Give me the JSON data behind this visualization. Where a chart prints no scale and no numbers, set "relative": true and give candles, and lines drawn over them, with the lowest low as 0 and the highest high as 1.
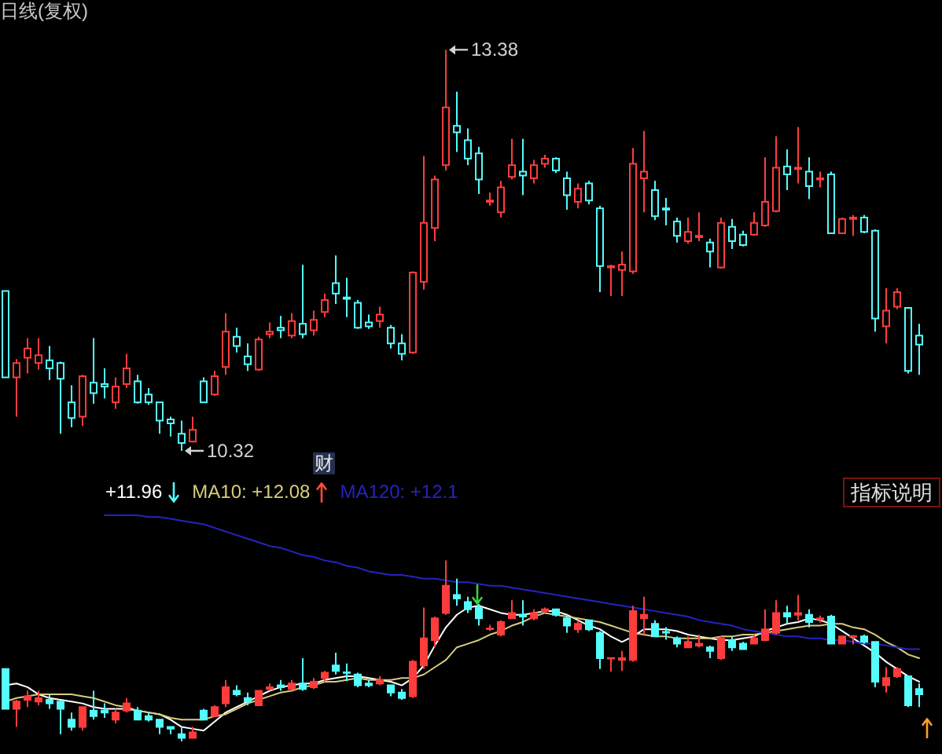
{
  "chart_data": [
    {
      "type": "candlestick",
      "title": "日线(复权)",
      "categories": [
        null,
        null,
        null,
        null,
        null,
        null,
        null,
        null,
        null,
        null,
        null,
        null,
        null,
        null,
        null,
        null,
        null,
        null,
        null,
        null,
        null,
        null,
        null,
        null,
        null,
        null,
        null,
        null,
        null,
        null,
        null,
        null,
        null,
        null,
        null,
        null,
        null,
        null,
        null,
        null,
        null,
        null,
        null,
        null,
        null,
        null,
        null,
        null,
        null,
        null,
        null,
        null,
        null,
        null,
        null,
        null,
        null,
        null,
        null,
        null,
        null,
        null,
        null,
        null,
        null,
        null,
        null,
        null,
        null,
        null,
        null,
        null,
        null,
        null,
        null,
        null,
        null,
        null,
        null,
        null,
        null,
        null,
        null,
        null
      ],
      "ohlc": [
        [
          11.54,
          11.54,
          10.88,
          10.88
        ],
        [
          10.88,
          11.02,
          10.58,
          10.99
        ],
        [
          11.03,
          11.18,
          10.91,
          11.1
        ],
        [
          10.99,
          11.18,
          10.94,
          11.05
        ],
        [
          11.01,
          11.12,
          10.86,
          10.95
        ],
        [
          10.99,
          11.0,
          10.45,
          10.87
        ],
        [
          10.69,
          10.82,
          10.5,
          10.57
        ],
        [
          10.58,
          10.9,
          10.51,
          10.89
        ],
        [
          10.84,
          11.18,
          10.68,
          10.76
        ],
        [
          10.83,
          10.95,
          10.72,
          10.81
        ],
        [
          10.69,
          10.88,
          10.64,
          10.81
        ],
        [
          10.83,
          11.06,
          10.8,
          10.95
        ],
        [
          10.85,
          10.9,
          10.68,
          10.69
        ],
        [
          10.75,
          10.8,
          10.67,
          10.69
        ],
        [
          10.69,
          10.69,
          10.45,
          10.55
        ],
        [
          10.56,
          10.58,
          10.43,
          10.53
        ],
        [
          10.45,
          10.55,
          10.32,
          10.38
        ],
        [
          10.39,
          10.58,
          10.39,
          10.48
        ],
        [
          10.85,
          10.88,
          10.69,
          10.69
        ],
        [
          10.75,
          10.93,
          10.74,
          10.89
        ],
        [
          10.96,
          11.37,
          10.9,
          11.23
        ],
        [
          11.19,
          11.26,
          11.07,
          11.12
        ],
        [
          11.04,
          11.14,
          10.93,
          10.98
        ],
        [
          10.94,
          11.19,
          10.93,
          11.17
        ],
        [
          11.21,
          11.3,
          11.18,
          11.23
        ],
        [
          11.26,
          11.35,
          11.18,
          11.24
        ],
        [
          11.2,
          11.37,
          11.18,
          11.31
        ],
        [
          11.29,
          11.74,
          11.18,
          11.21
        ],
        [
          11.24,
          11.39,
          11.2,
          11.32
        ],
        [
          11.38,
          11.52,
          11.34,
          11.47
        ],
        [
          11.6,
          11.81,
          11.44,
          11.52
        ],
        [
          11.49,
          11.64,
          11.34,
          11.48
        ],
        [
          11.45,
          11.47,
          11.25,
          11.26
        ],
        [
          11.3,
          11.36,
          11.25,
          11.27
        ],
        [
          11.31,
          11.42,
          11.26,
          11.36
        ],
        [
          11.26,
          11.28,
          11.1,
          11.14
        ],
        [
          11.14,
          11.21,
          11.01,
          11.06
        ],
        [
          11.07,
          11.69,
          11.06,
          11.68
        ],
        [
          11.61,
          12.57,
          11.55,
          12.06
        ],
        [
          12.02,
          12.42,
          11.92,
          12.39
        ],
        [
          12.5,
          13.38,
          12.46,
          12.94
        ],
        [
          12.8,
          13.06,
          12.6,
          12.75
        ],
        [
          12.69,
          12.78,
          12.5,
          12.55
        ],
        [
          12.59,
          12.64,
          12.28,
          12.39
        ],
        [
          12.22,
          12.29,
          12.19,
          12.23
        ],
        [
          12.14,
          12.38,
          12.1,
          12.33
        ],
        [
          12.41,
          12.7,
          12.39,
          12.5
        ],
        [
          12.45,
          12.7,
          12.27,
          12.42
        ],
        [
          12.4,
          12.54,
          12.36,
          12.5
        ],
        [
          12.51,
          12.58,
          12.48,
          12.55
        ],
        [
          12.55,
          12.56,
          12.44,
          12.46
        ],
        [
          12.4,
          12.45,
          12.16,
          12.27
        ],
        [
          12.22,
          12.36,
          12.17,
          12.32
        ],
        [
          12.36,
          12.38,
          12.2,
          12.23
        ],
        [
          12.17,
          12.19,
          11.53,
          11.73
        ],
        [
          11.72,
          11.74,
          11.5,
          11.73
        ],
        [
          11.7,
          11.84,
          11.5,
          11.74
        ],
        [
          11.69,
          12.63,
          11.67,
          12.51
        ],
        [
          12.4,
          12.76,
          12.14,
          12.45
        ],
        [
          12.31,
          12.38,
          12.08,
          12.11
        ],
        [
          12.17,
          12.25,
          12.04,
          12.16
        ],
        [
          12.07,
          12.1,
          11.91,
          11.96
        ],
        [
          11.92,
          12.1,
          11.9,
          11.99
        ],
        [
          11.95,
          12.14,
          11.92,
          11.96
        ],
        [
          11.91,
          11.94,
          11.72,
          11.84
        ],
        [
          11.72,
          12.1,
          11.71,
          12.06
        ],
        [
          12.03,
          12.09,
          11.86,
          11.92
        ],
        [
          11.97,
          12.0,
          11.88,
          11.89
        ],
        [
          11.97,
          12.14,
          11.96,
          12.06
        ],
        [
          12.04,
          12.56,
          12.03,
          12.22
        ],
        [
          12.15,
          12.72,
          12.14,
          12.48
        ],
        [
          12.49,
          12.62,
          12.31,
          12.43
        ],
        [
          12.47,
          12.79,
          12.36,
          12.48
        ],
        [
          12.45,
          12.56,
          12.24,
          12.34
        ],
        [
          12.39,
          12.45,
          12.33,
          12.4
        ],
        [
          12.43,
          12.45,
          11.98,
          11.98
        ],
        [
          11.98,
          12.1,
          11.98,
          12.09
        ],
        [
          12.09,
          12.12,
          11.96,
          12.1
        ],
        [
          12.1,
          12.12,
          11.98,
          11.99
        ],
        [
          12.0,
          12.01,
          11.23,
          11.33
        ],
        [
          11.27,
          11.56,
          11.14,
          11.39
        ],
        [
          11.42,
          11.56,
          11.4,
          11.53
        ],
        [
          11.41,
          11.41,
          10.91,
          10.93
        ],
        [
          11.2,
          11.29,
          10.9,
          11.13
        ]
      ],
      "colors": [
        "#54fcfc",
        "#ff3c3c",
        "#ff3c3c",
        "#ff3c3c",
        "#54fcfc",
        "#54fcfc",
        "#54fcfc",
        "#ff3c3c",
        "#54fcfc",
        "#54fcfc",
        "#ff3c3c",
        "#ff3c3c",
        "#54fcfc",
        "#54fcfc",
        "#54fcfc",
        "#54fcfc",
        "#54fcfc",
        "#ff3c3c",
        "#54fcfc",
        "#ff3c3c",
        "#ff3c3c",
        "#54fcfc",
        "#54fcfc",
        "#ff3c3c",
        "#ff3c3c",
        "#54fcfc",
        "#ff3c3c",
        "#54fcfc",
        "#ff3c3c",
        "#ff3c3c",
        "#54fcfc",
        "#54fcfc",
        "#54fcfc",
        "#54fcfc",
        "#ff3c3c",
        "#54fcfc",
        "#54fcfc",
        "#ff3c3c",
        "#ff3c3c",
        "#ff3c3c",
        "#ff3c3c",
        "#54fcfc",
        "#54fcfc",
        "#54fcfc",
        "#ff3c3c",
        "#ff3c3c",
        "#ff3c3c",
        "#54fcfc",
        "#ff3c3c",
        "#ff3c3c",
        "#54fcfc",
        "#54fcfc",
        "#ff3c3c",
        "#54fcfc",
        "#54fcfc",
        "#ff3c3c",
        "#ff3c3c",
        "#ff3c3c",
        "#ff3c3c",
        "#54fcfc",
        "#54fcfc",
        "#54fcfc",
        "#ff3c3c",
        "#ff3c3c",
        "#54fcfc",
        "#ff3c3c",
        "#54fcfc",
        "#54fcfc",
        "#ff3c3c",
        "#ff3c3c",
        "#ff3c3c",
        "#54fcfc",
        "#ff3c3c",
        "#54fcfc",
        "#ff3c3c",
        "#54fcfc",
        "#ff3c3c",
        "#ff3c3c",
        "#54fcfc",
        "#54fcfc",
        "#ff3c3c",
        "#ff3c3c",
        "#54fcfc",
        "#54fcfc"
      ],
      "annotations": [
        "13.38",
        "10.32"
      ],
      "tick_labels": false
    },
    {
      "type": "candlestick",
      "relative": true,
      "categories": [
        null,
        null,
        null,
        null,
        null,
        null,
        null,
        null,
        null,
        null,
        null,
        null,
        null,
        null,
        null,
        null,
        null,
        null,
        null,
        null,
        null,
        null,
        null,
        null,
        null,
        null,
        null,
        null,
        null,
        null,
        null,
        null,
        null,
        null,
        null,
        null,
        null,
        null,
        null,
        null,
        null,
        null,
        null,
        null,
        null,
        null,
        null,
        null,
        null,
        null,
        null,
        null,
        null,
        null,
        null,
        null,
        null,
        null,
        null,
        null,
        null,
        null,
        null,
        null,
        null,
        null,
        null,
        null,
        null,
        null,
        null,
        null,
        null,
        null,
        null,
        null,
        null,
        null,
        null,
        null,
        null,
        null,
        null,
        null
      ],
      "ohlc": [
        [
          0.4,
          0.4,
          0.18,
          0.18
        ],
        [
          0.18,
          0.23,
          0.08,
          0.22
        ],
        [
          0.23,
          0.28,
          0.19,
          0.25
        ],
        [
          0.22,
          0.28,
          0.2,
          0.24
        ],
        [
          0.23,
          0.26,
          0.18,
          0.21
        ],
        [
          0.22,
          0.22,
          0.04,
          0.18
        ],
        [
          0.12,
          0.16,
          0.06,
          0.08
        ],
        [
          0.08,
          0.19,
          0.06,
          0.19
        ],
        [
          0.17,
          0.28,
          0.12,
          0.14
        ],
        [
          0.17,
          0.21,
          0.13,
          0.16
        ],
        [
          0.12,
          0.18,
          0.1,
          0.16
        ],
        [
          0.17,
          0.24,
          0.16,
          0.21
        ],
        [
          0.17,
          0.19,
          0.12,
          0.12
        ],
        [
          0.14,
          0.16,
          0.11,
          0.12
        ],
        [
          0.12,
          0.12,
          0.04,
          0.08
        ],
        [
          0.08,
          0.08,
          0.04,
          0.07
        ],
        [
          0.04,
          0.08,
          0.0,
          0.02
        ],
        [
          0.02,
          0.08,
          0.02,
          0.05
        ],
        [
          0.17,
          0.18,
          0.12,
          0.12
        ],
        [
          0.14,
          0.2,
          0.14,
          0.19
        ],
        [
          0.21,
          0.34,
          0.19,
          0.3
        ],
        [
          0.28,
          0.31,
          0.25,
          0.26
        ],
        [
          0.24,
          0.27,
          0.2,
          0.22
        ],
        [
          0.2,
          0.28,
          0.2,
          0.28
        ],
        [
          0.29,
          0.32,
          0.28,
          0.3
        ],
        [
          0.31,
          0.34,
          0.28,
          0.3
        ],
        [
          0.29,
          0.34,
          0.28,
          0.32
        ],
        [
          0.32,
          0.46,
          0.28,
          0.29
        ],
        [
          0.3,
          0.35,
          0.29,
          0.33
        ],
        [
          0.35,
          0.39,
          0.33,
          0.38
        ],
        [
          0.42,
          0.49,
          0.37,
          0.39
        ],
        [
          0.382,
          0.431,
          0.333,
          0.379
        ],
        [
          0.37,
          0.38,
          0.3,
          0.31
        ],
        [
          0.32,
          0.34,
          0.3,
          0.31
        ],
        [
          0.32,
          0.36,
          0.31,
          0.34
        ],
        [
          0.31,
          0.31,
          0.25,
          0.27
        ],
        [
          0.27,
          0.29,
          0.23,
          0.24
        ],
        [
          0.25,
          0.45,
          0.24,
          0.44
        ],
        [
          0.42,
          0.74,
          0.4,
          0.57
        ],
        [
          0.56,
          0.69,
          0.52,
          0.68
        ],
        [
          0.71,
          1.0,
          0.7,
          0.86
        ],
        [
          0.81,
          0.9,
          0.75,
          0.79
        ],
        [
          0.77,
          0.8,
          0.71,
          0.73
        ],
        [
          0.74,
          0.76,
          0.64,
          0.68
        ],
        [
          0.621,
          0.644,
          0.611,
          0.624
        ],
        [
          0.59,
          0.67,
          0.58,
          0.66
        ],
        [
          0.68,
          0.78,
          0.68,
          0.71
        ],
        [
          0.7,
          0.78,
          0.64,
          0.69
        ],
        [
          0.68,
          0.73,
          0.67,
          0.71
        ],
        [
          0.72,
          0.74,
          0.71,
          0.73
        ],
        [
          0.73,
          0.73,
          0.69,
          0.7
        ],
        [
          0.68,
          0.7,
          0.6,
          0.64
        ],
        [
          0.62,
          0.67,
          0.6,
          0.65
        ],
        [
          0.67,
          0.67,
          0.61,
          0.62
        ],
        [
          0.6,
          0.61,
          0.4,
          0.46
        ],
        [
          0.458,
          0.464,
          0.386,
          0.461
        ],
        [
          0.45,
          0.5,
          0.39,
          0.46
        ],
        [
          0.45,
          0.75,
          0.44,
          0.72
        ],
        [
          0.68,
          0.8,
          0.59,
          0.7
        ],
        [
          0.65,
          0.67,
          0.58,
          0.58
        ],
        [
          0.605,
          0.631,
          0.562,
          0.601
        ],
        [
          0.57,
          0.58,
          0.52,
          0.54
        ],
        [
          0.52,
          0.58,
          0.52,
          0.55
        ],
        [
          0.53,
          0.59,
          0.52,
          0.54
        ],
        [
          0.52,
          0.53,
          0.46,
          0.5
        ],
        [
          0.46,
          0.58,
          0.45,
          0.57
        ],
        [
          0.56,
          0.58,
          0.5,
          0.52
        ],
        [
          0.54,
          0.55,
          0.51,
          0.51
        ],
        [
          0.54,
          0.59,
          0.54,
          0.57
        ],
        [
          0.56,
          0.73,
          0.56,
          0.62
        ],
        [
          0.6,
          0.78,
          0.59,
          0.71
        ],
        [
          0.71,
          0.75,
          0.65,
          0.69
        ],
        [
          0.7,
          0.81,
          0.67,
          0.71
        ],
        [
          0.7,
          0.73,
          0.63,
          0.66
        ],
        [
          0.676,
          0.696,
          0.657,
          0.68
        ],
        [
          0.69,
          0.7,
          0.54,
          0.54
        ],
        [
          0.54,
          0.58,
          0.54,
          0.58
        ],
        [
          0.578,
          0.588,
          0.536,
          0.582
        ],
        [
          0.58,
          0.59,
          0.54,
          0.55
        ],
        [
          0.55,
          0.55,
          0.3,
          0.33
        ],
        [
          0.31,
          0.41,
          0.27,
          0.35
        ],
        [
          0.36,
          0.41,
          0.35,
          0.4
        ],
        [
          0.36,
          0.36,
          0.19,
          0.2
        ],
        [
          0.29,
          0.32,
          0.19,
          0.26
        ]
      ],
      "colors": [
        "#54fcfc",
        "#ff3c3c",
        "#ff3c3c",
        "#ff3c3c",
        "#54fcfc",
        "#54fcfc",
        "#54fcfc",
        "#ff3c3c",
        "#54fcfc",
        "#54fcfc",
        "#ff3c3c",
        "#ff3c3c",
        "#54fcfc",
        "#54fcfc",
        "#54fcfc",
        "#54fcfc",
        "#54fcfc",
        "#ff3c3c",
        "#54fcfc",
        "#ff3c3c",
        "#ff3c3c",
        "#54fcfc",
        "#54fcfc",
        "#ff3c3c",
        "#ff3c3c",
        "#54fcfc",
        "#ff3c3c",
        "#54fcfc",
        "#ff3c3c",
        "#ff3c3c",
        "#54fcfc",
        "#54fcfc",
        "#54fcfc",
        "#54fcfc",
        "#ff3c3c",
        "#54fcfc",
        "#54fcfc",
        "#ff3c3c",
        "#ff3c3c",
        "#ff3c3c",
        "#ff3c3c",
        "#54fcfc",
        "#54fcfc",
        "#54fcfc",
        "#ff3c3c",
        "#ff3c3c",
        "#ff3c3c",
        "#54fcfc",
        "#ff3c3c",
        "#ff3c3c",
        "#54fcfc",
        "#54fcfc",
        "#ff3c3c",
        "#54fcfc",
        "#54fcfc",
        "#ff3c3c",
        "#ff3c3c",
        "#ff3c3c",
        "#ff3c3c",
        "#54fcfc",
        "#54fcfc",
        "#54fcfc",
        "#ff3c3c",
        "#ff3c3c",
        "#54fcfc",
        "#ff3c3c",
        "#54fcfc",
        "#54fcfc",
        "#ff3c3c",
        "#ff3c3c",
        "#ff3c3c",
        "#54fcfc",
        "#ff3c3c",
        "#54fcfc",
        "#ff3c3c",
        "#54fcfc",
        "#ff3c3c",
        "#ff3c3c",
        "#54fcfc",
        "#54fcfc",
        "#ff3c3c",
        "#ff3c3c",
        "#54fcfc",
        "#54fcfc"
      ],
      "series": [
        {
          "type": "line",
          "name": "+11.96",
          "color": "#ffffff",
          "values": [
            0.31,
            0.32,
            0.3,
            0.26,
            0.24,
            0.23,
            0.22,
            0.21,
            0.19,
            0.18,
            0.18,
            0.18,
            0.17,
            0.16,
            0.15,
            0.12,
            0.08,
            0.07,
            0.06,
            0.11,
            0.16,
            0.19,
            0.22,
            0.25,
            0.28,
            0.3,
            0.31,
            0.32,
            0.32,
            0.34,
            0.35,
            0.36,
            0.36,
            0.35,
            0.34,
            0.33,
            0.31,
            0.35,
            0.42,
            0.53,
            0.63,
            0.7,
            0.74,
            0.75,
            0.73,
            0.71,
            0.7,
            0.7,
            0.71,
            0.72,
            0.72,
            0.7,
            0.67,
            0.64,
            0.62,
            0.58,
            0.55,
            0.58,
            0.62,
            0.62,
            0.62,
            0.61,
            0.59,
            0.58,
            0.57,
            0.56,
            0.56,
            0.57,
            0.58,
            0.61,
            0.63,
            0.65,
            0.66,
            0.68,
            0.67,
            0.65,
            0.61,
            0.57,
            0.53,
            0.49,
            0.44,
            0.4,
            0.36,
            0.33
          ]
        },
        {
          "type": "line",
          "name": "MA10: +12.08",
          "color": "#d8cc7c",
          "values": [
            0.22,
            0.24,
            0.25,
            0.26,
            0.26,
            0.26,
            0.26,
            0.25,
            0.24,
            0.22,
            0.2,
            0.19,
            0.17,
            0.16,
            0.15,
            0.13,
            0.12,
            0.12,
            0.12,
            0.14,
            0.15,
            0.18,
            0.21,
            0.23,
            0.25,
            0.27,
            0.28,
            0.3,
            0.31,
            0.33,
            0.33,
            0.34,
            0.35,
            0.34,
            0.34,
            0.34,
            0.35,
            0.35,
            0.37,
            0.41,
            0.45,
            0.52,
            0.54,
            0.56,
            0.59,
            0.61,
            0.64,
            0.66,
            0.69,
            0.71,
            0.7,
            0.69,
            0.68,
            0.67,
            0.66,
            0.64,
            0.62,
            0.6,
            0.59,
            0.58,
            0.58,
            0.57,
            0.57,
            0.57,
            0.57,
            0.58,
            0.58,
            0.59,
            0.59,
            0.6,
            0.61,
            0.62,
            0.63,
            0.64,
            0.64,
            0.65,
            0.65,
            0.63,
            0.62,
            0.59,
            0.55,
            0.52,
            0.48,
            0.46
          ]
        },
        {
          "type": "line",
          "name": "MA120: +12.1",
          "color": "#2424c0",
          "values": [
            null,
            null,
            null,
            null,
            null,
            null,
            null,
            null,
            null,
            1.25,
            1.25,
            1.25,
            1.25,
            1.24,
            1.24,
            1.23,
            1.22,
            1.21,
            1.2,
            1.18,
            1.16,
            1.14,
            1.12,
            1.1,
            1.08,
            1.07,
            1.05,
            1.03,
            1.02,
            1.0,
            0.99,
            0.97,
            0.96,
            0.94,
            0.93,
            0.92,
            0.92,
            0.91,
            0.9,
            0.9,
            0.89,
            0.88,
            0.88,
            0.87,
            0.86,
            0.86,
            0.85,
            0.84,
            0.83,
            0.82,
            0.81,
            0.8,
            0.79,
            0.78,
            0.77,
            0.76,
            0.75,
            0.74,
            0.73,
            0.72,
            0.71,
            0.7,
            0.69,
            0.67,
            0.66,
            0.65,
            0.64,
            0.62,
            0.61,
            0.6,
            0.59,
            0.58,
            0.58,
            0.57,
            0.57,
            0.56,
            0.56,
            0.55,
            0.54,
            0.54,
            0.53,
            0.52,
            0.51,
            0.51
          ]
        }
      ],
      "legend": "top left",
      "annotations": [
        "财",
        "指标说明"
      ]
    }
  ]
}
